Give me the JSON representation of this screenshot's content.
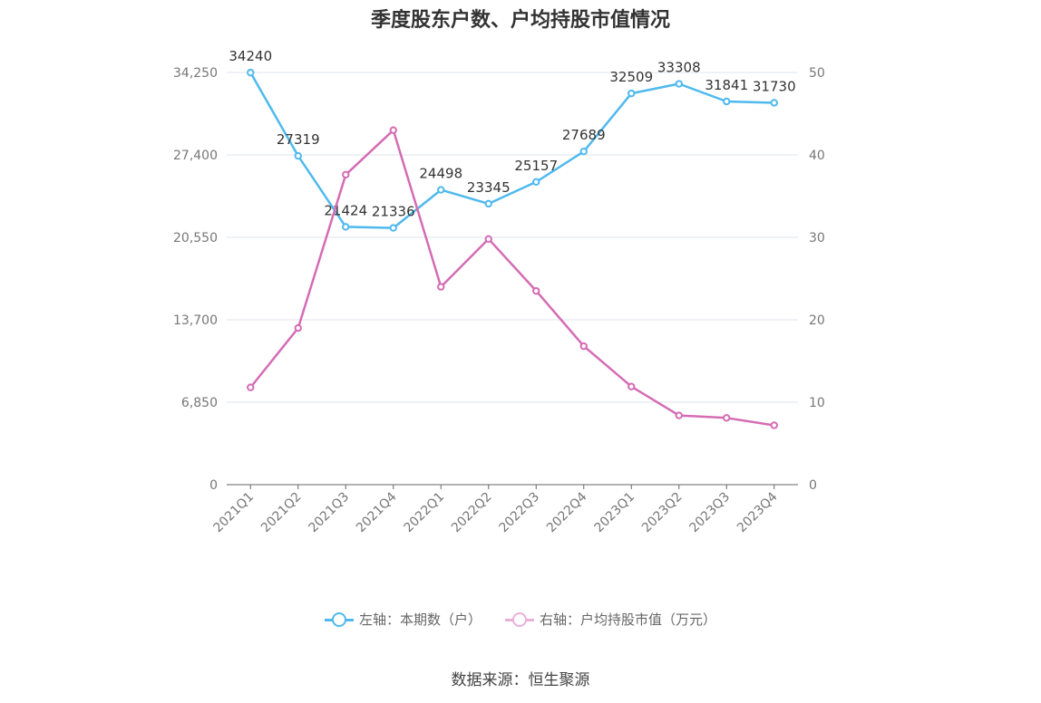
{
  "title": "季度股东户数、户均持股市值情况",
  "source": "数据来源：恒生聚源",
  "chart_data": {
    "type": "line",
    "categories": [
      "2021Q1",
      "2021Q2",
      "2021Q3",
      "2021Q4",
      "2022Q1",
      "2022Q2",
      "2022Q3",
      "2022Q4",
      "2023Q1",
      "2023Q2",
      "2023Q3",
      "2023Q4"
    ],
    "left_axis": {
      "ylim": [
        0,
        34250
      ],
      "ticks": [
        "0",
        "6,850",
        "13,700",
        "20,550",
        "27,400",
        "34,250"
      ]
    },
    "right_axis": {
      "ylim": [
        0,
        50
      ],
      "ticks": [
        "0",
        "10",
        "20",
        "30",
        "40",
        "50"
      ]
    },
    "grid": true,
    "legend_position": "bottom",
    "series": [
      {
        "name": "左轴：本期数（户）",
        "axis": "left",
        "color": "#4fb9ee",
        "values": [
          34240,
          27319,
          21424,
          21336,
          24498,
          23345,
          25157,
          27689,
          32509,
          33308,
          31841,
          31730
        ],
        "labels": [
          "34240",
          "27319",
          "21424",
          "21336",
          "24498",
          "23345",
          "25157",
          "27689",
          "32509",
          "33308",
          "31841",
          "31730"
        ]
      },
      {
        "name": "右轴：户均持股市值（万元）",
        "axis": "right",
        "color": "#d46cb4",
        "values": [
          11.8,
          19.0,
          37.6,
          43.0,
          24.0,
          29.8,
          23.5,
          16.8,
          11.9,
          8.4,
          8.1,
          7.2
        ]
      }
    ]
  }
}
